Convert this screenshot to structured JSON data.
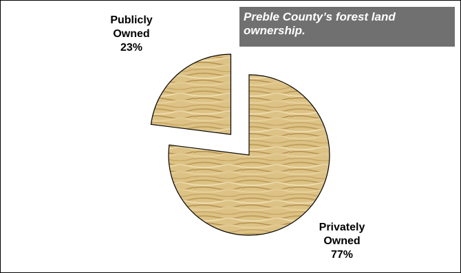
{
  "chart_data": {
    "type": "pie",
    "title": "Preble County’s forest land ownership.",
    "categories": [
      "Privately Owned",
      "Publicly Owned"
    ],
    "values": [
      77,
      23
    ],
    "labels": [
      {
        "line1": "Publicly",
        "line2": "Owned",
        "pct": "23%"
      },
      {
        "line1": "Privately",
        "line2": "Owned",
        "pct": "77%"
      }
    ],
    "exploded_slice": "Publicly Owned",
    "fill": "wood-grain",
    "colors": {
      "wood_light": "#e6cf98",
      "wood_mid": "#d2b06a",
      "wood_dark": "#a8823e",
      "outline": "#000000",
      "title_bg": "#707070",
      "title_text": "#ffffff"
    }
  }
}
